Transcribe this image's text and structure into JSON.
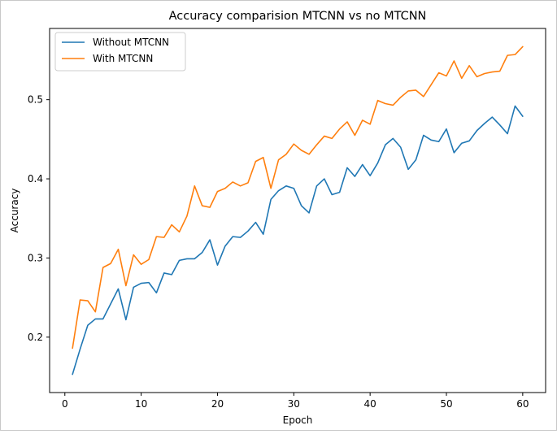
{
  "chart_data": {
    "type": "line",
    "title": "Accuracy comparision MTCNN vs no MTCNN",
    "xlabel": "Epoch",
    "ylabel": "Accuracy",
    "xlim": [
      -2,
      63
    ],
    "ylim": [
      0.13,
      0.59
    ],
    "xticks": [
      0,
      10,
      20,
      30,
      40,
      50,
      60
    ],
    "yticks": [
      0.2,
      0.3,
      0.4,
      0.5
    ],
    "xtick_labels": [
      "0",
      "10",
      "20",
      "30",
      "40",
      "50",
      "60"
    ],
    "ytick_labels": [
      "0.2",
      "0.3",
      "0.4",
      "0.5"
    ],
    "grid": false,
    "legend_position": "upper left",
    "x": [
      1,
      2,
      3,
      4,
      5,
      6,
      7,
      8,
      9,
      10,
      11,
      12,
      13,
      14,
      15,
      16,
      17,
      18,
      19,
      20,
      21,
      22,
      23,
      24,
      25,
      26,
      27,
      28,
      29,
      30,
      31,
      32,
      33,
      34,
      35,
      36,
      37,
      38,
      39,
      40,
      41,
      42,
      43,
      44,
      45,
      46,
      47,
      48,
      49,
      50,
      51,
      52,
      53,
      54,
      55,
      56,
      57,
      58,
      59,
      60
    ],
    "series": [
      {
        "name": "Without MTCNN",
        "color": "#1f77b4",
        "values": [
          0.153,
          0.185,
          0.215,
          0.223,
          0.223,
          0.242,
          0.261,
          0.222,
          0.263,
          0.268,
          0.269,
          0.256,
          0.281,
          0.279,
          0.297,
          0.299,
          0.299,
          0.307,
          0.323,
          0.291,
          0.315,
          0.327,
          0.326,
          0.334,
          0.345,
          0.33,
          0.374,
          0.385,
          0.391,
          0.388,
          0.366,
          0.357,
          0.391,
          0.4,
          0.38,
          0.383,
          0.414,
          0.403,
          0.418,
          0.404,
          0.42,
          0.443,
          0.451,
          0.44,
          0.412,
          0.424,
          0.455,
          0.449,
          0.447,
          0.463,
          0.433,
          0.445,
          0.448,
          0.461,
          0.47,
          0.478,
          0.468,
          0.457,
          0.492,
          0.479
        ]
      },
      {
        "name": "With MTCNN",
        "color": "#ff7f0e",
        "values": [
          0.186,
          0.247,
          0.246,
          0.232,
          0.288,
          0.293,
          0.311,
          0.265,
          0.304,
          0.292,
          0.298,
          0.327,
          0.326,
          0.342,
          0.333,
          0.353,
          0.391,
          0.366,
          0.364,
          0.384,
          0.388,
          0.396,
          0.391,
          0.395,
          0.422,
          0.427,
          0.388,
          0.424,
          0.431,
          0.444,
          0.436,
          0.431,
          0.443,
          0.454,
          0.451,
          0.463,
          0.472,
          0.455,
          0.474,
          0.469,
          0.499,
          0.495,
          0.493,
          0.503,
          0.511,
          0.512,
          0.504,
          0.519,
          0.534,
          0.53,
          0.549,
          0.527,
          0.543,
          0.529,
          0.533,
          0.535,
          0.536,
          0.556,
          0.557,
          0.567
        ]
      }
    ]
  }
}
